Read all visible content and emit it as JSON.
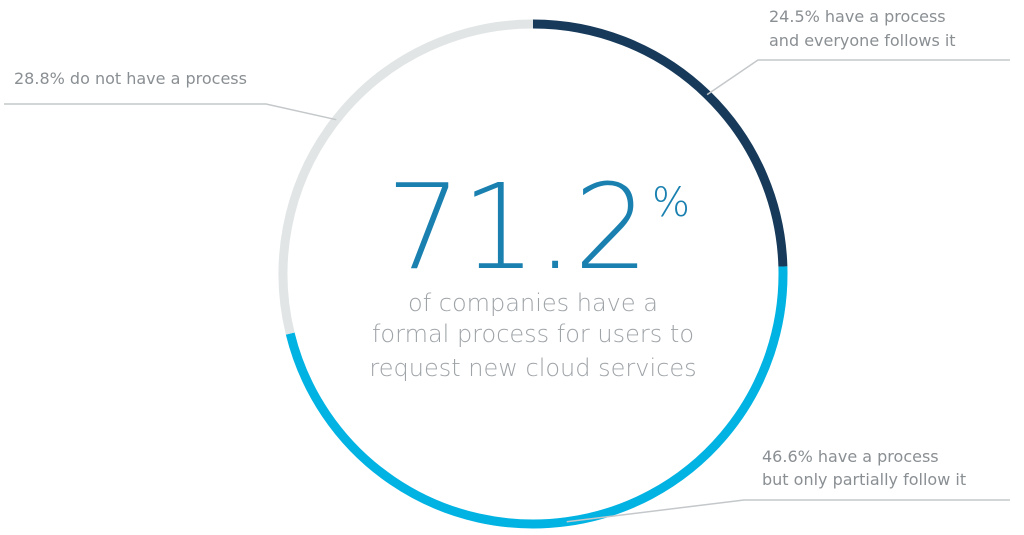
{
  "chart_data": {
    "type": "pie",
    "style": "donut",
    "slices": [
      {
        "label_lines": [
          "24.5% have a process",
          "and everyone follows it"
        ],
        "value": 24.5,
        "color": "#173a5b"
      },
      {
        "label_lines": [
          "46.6%  have a process",
          "but only partially follow it"
        ],
        "value": 46.6,
        "color": "#00b3e3"
      },
      {
        "label_lines": [
          "28.8% do not have a process"
        ],
        "value": 28.8,
        "color": "#e1e5e5"
      }
    ],
    "center": {
      "value": "71.2",
      "suffix": "%",
      "description_lines": [
        "of companies have a",
        "formal process for users to",
        "request new cloud services"
      ]
    },
    "colors": {
      "center_value": "#1a80b0",
      "description": "#9ea3a7",
      "callout_text": "#8a8f93",
      "leader_line": "#c4c8ca"
    }
  }
}
